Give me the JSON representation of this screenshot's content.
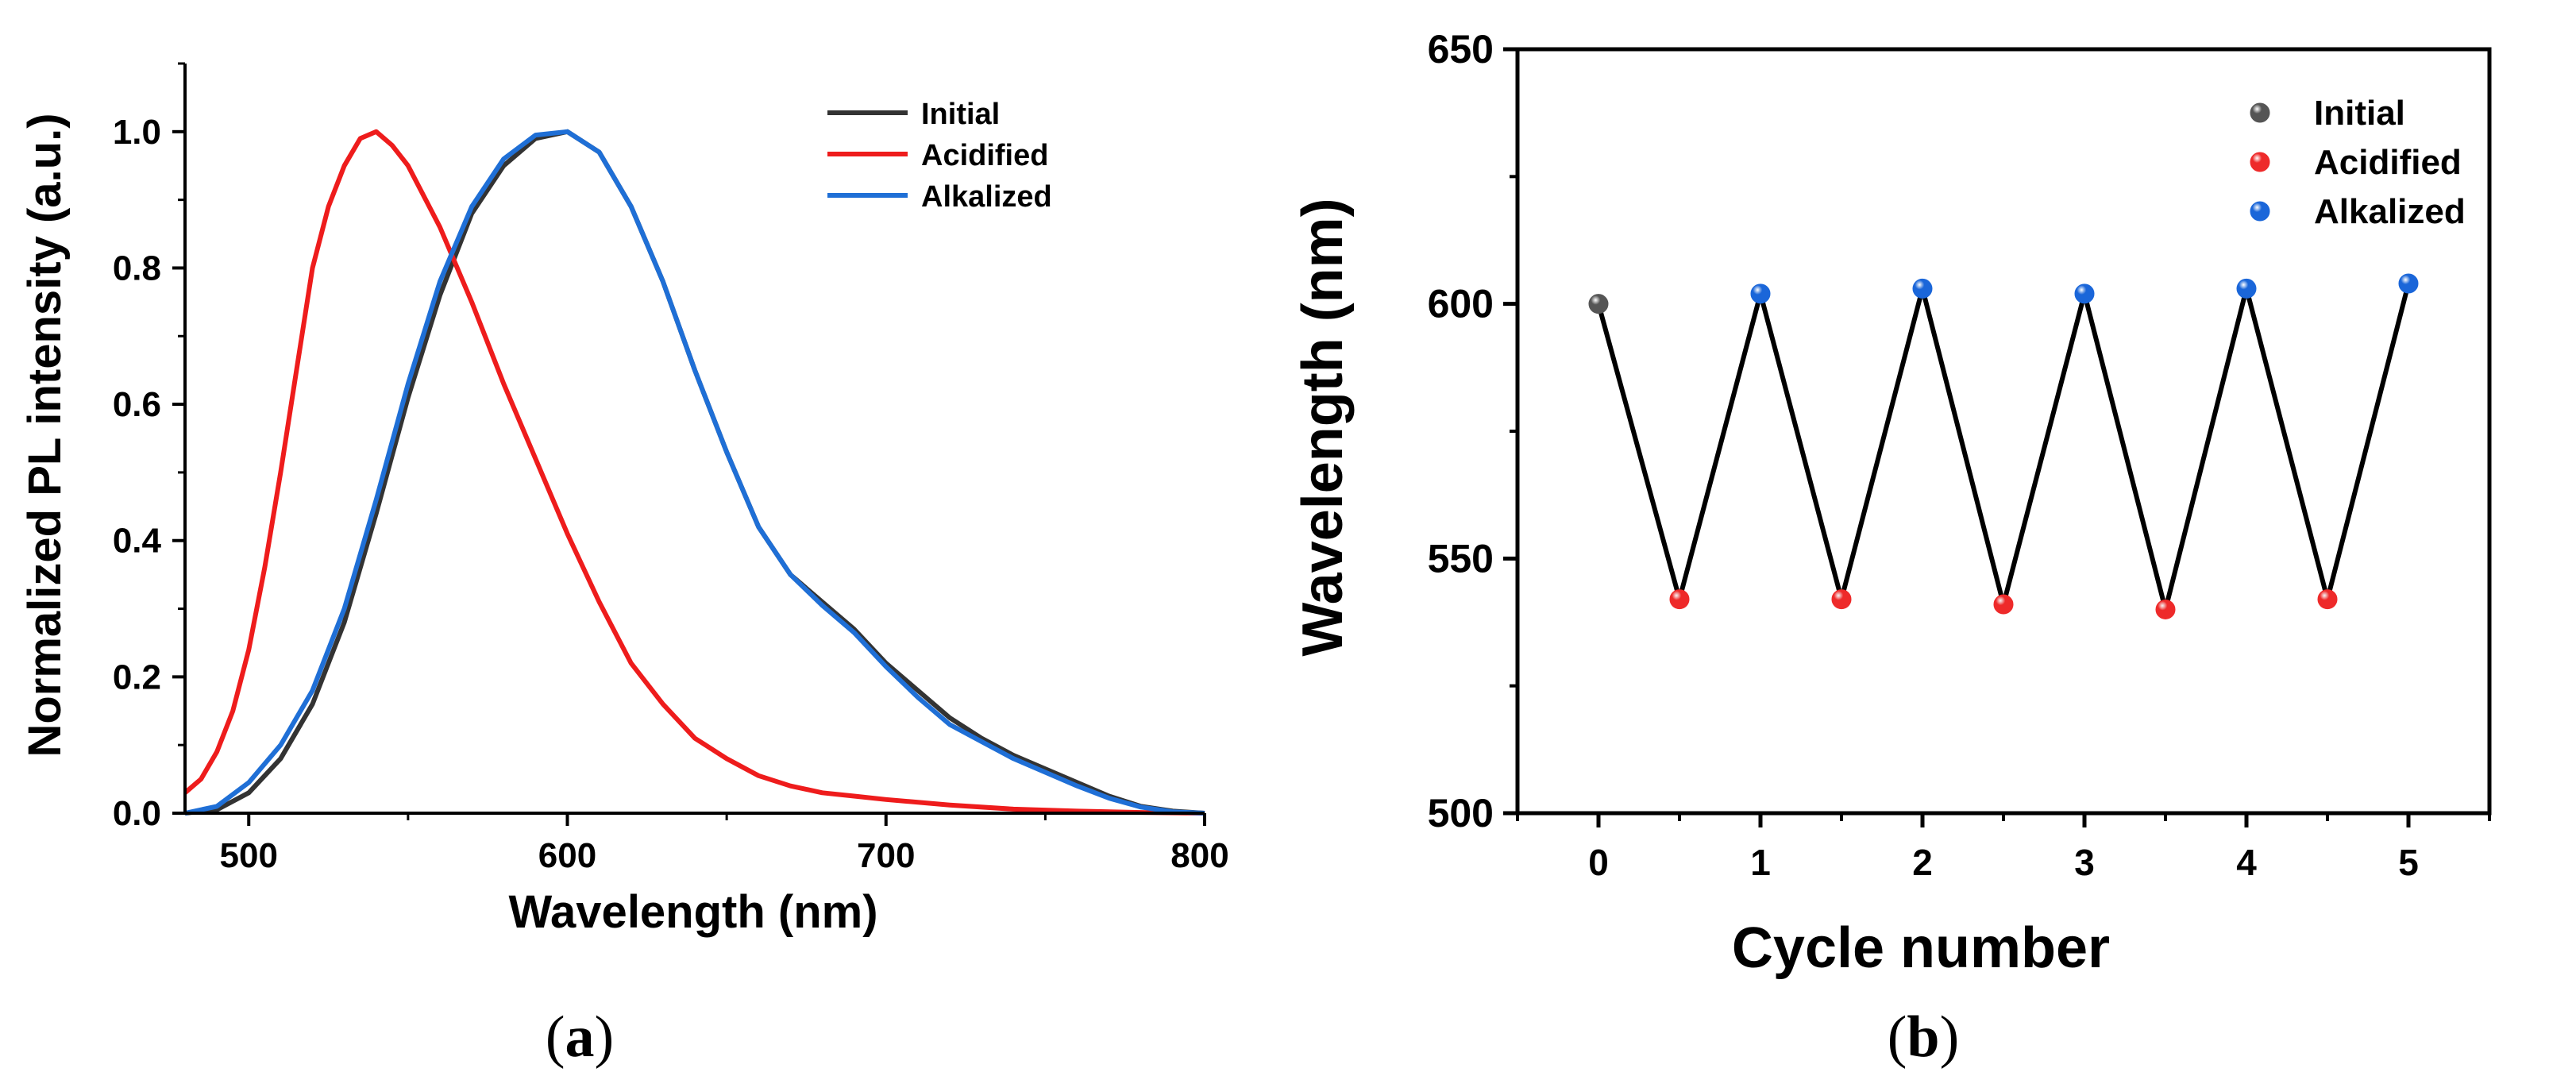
{
  "chart_data": [
    {
      "type": "line",
      "panel_label": "a",
      "title": "",
      "xlabel": "Wavelength (nm)",
      "ylabel": "Normalized PL intensity (a.u.)",
      "xlim": [
        480,
        800
      ],
      "ylim": [
        0.0,
        1.1
      ],
      "xticks": [
        500,
        600,
        700,
        800
      ],
      "xtick_labels": [
        "500",
        "600",
        "700",
        "800"
      ],
      "yticks": [
        0.0,
        0.2,
        0.4,
        0.6,
        0.8,
        1.0
      ],
      "ytick_labels": [
        "0.0",
        "0.2",
        "0.4",
        "0.6",
        "0.8",
        "1.0"
      ],
      "grid": false,
      "legend": "top-right",
      "series": [
        {
          "name": "Initial",
          "color": "#333333",
          "x": [
            480,
            490,
            500,
            510,
            520,
            530,
            540,
            550,
            560,
            570,
            580,
            590,
            600,
            610,
            620,
            630,
            640,
            650,
            660,
            670,
            680,
            690,
            700,
            710,
            720,
            730,
            740,
            750,
            760,
            770,
            780,
            790,
            800
          ],
          "y": [
            0.0,
            0.005,
            0.03,
            0.08,
            0.16,
            0.28,
            0.44,
            0.61,
            0.76,
            0.88,
            0.95,
            0.99,
            1.0,
            0.97,
            0.89,
            0.78,
            0.65,
            0.53,
            0.42,
            0.35,
            0.31,
            0.27,
            0.22,
            0.18,
            0.14,
            0.11,
            0.085,
            0.065,
            0.045,
            0.025,
            0.01,
            0.003,
            0.0
          ]
        },
        {
          "name": "Acidified",
          "color": "#ee1c1c",
          "x": [
            480,
            485,
            490,
            495,
            500,
            505,
            510,
            515,
            520,
            525,
            530,
            535,
            540,
            545,
            550,
            560,
            570,
            580,
            590,
            600,
            610,
            620,
            630,
            640,
            650,
            660,
            670,
            680,
            690,
            700,
            720,
            740,
            760,
            780,
            800
          ],
          "y": [
            0.03,
            0.05,
            0.09,
            0.15,
            0.24,
            0.36,
            0.5,
            0.65,
            0.8,
            0.89,
            0.95,
            0.99,
            1.0,
            0.98,
            0.95,
            0.86,
            0.75,
            0.63,
            0.52,
            0.41,
            0.31,
            0.22,
            0.16,
            0.11,
            0.08,
            0.055,
            0.04,
            0.03,
            0.025,
            0.02,
            0.012,
            0.006,
            0.003,
            0.001,
            0.0
          ]
        },
        {
          "name": "Alkalized",
          "color": "#1f6fd6",
          "x": [
            480,
            490,
            500,
            510,
            520,
            530,
            540,
            550,
            560,
            570,
            580,
            590,
            600,
            610,
            620,
            630,
            640,
            650,
            660,
            670,
            680,
            690,
            700,
            710,
            720,
            730,
            740,
            750,
            760,
            770,
            780,
            790,
            800
          ],
          "y": [
            0.0,
            0.01,
            0.045,
            0.1,
            0.18,
            0.3,
            0.46,
            0.63,
            0.78,
            0.89,
            0.96,
            0.995,
            1.0,
            0.97,
            0.89,
            0.78,
            0.65,
            0.53,
            0.42,
            0.35,
            0.305,
            0.265,
            0.215,
            0.17,
            0.13,
            0.105,
            0.08,
            0.06,
            0.04,
            0.022,
            0.009,
            0.002,
            0.0
          ]
        }
      ]
    },
    {
      "type": "scatter",
      "panel_label": "b",
      "title": "",
      "xlabel": "Cycle number",
      "ylabel": "Wavelength (nm)",
      "xlim": [
        -0.5,
        5.5
      ],
      "ylim": [
        500,
        650
      ],
      "xticks": [
        0,
        1,
        2,
        3,
        4,
        5
      ],
      "xtick_labels": [
        "0",
        "1",
        "2",
        "3",
        "4",
        "5"
      ],
      "yticks": [
        500,
        550,
        600,
        650
      ],
      "ytick_labels": [
        "500",
        "550",
        "600",
        "650"
      ],
      "grid": false,
      "legend": "top-right",
      "connect_line_color": "#000000",
      "points": [
        {
          "x": 0.0,
          "y": 600,
          "series": "Initial"
        },
        {
          "x": 0.5,
          "y": 542,
          "series": "Acidified"
        },
        {
          "x": 1.0,
          "y": 602,
          "series": "Alkalized"
        },
        {
          "x": 1.5,
          "y": 542,
          "series": "Acidified"
        },
        {
          "x": 2.0,
          "y": 603,
          "series": "Alkalized"
        },
        {
          "x": 2.5,
          "y": 541,
          "series": "Acidified"
        },
        {
          "x": 3.0,
          "y": 602,
          "series": "Alkalized"
        },
        {
          "x": 3.5,
          "y": 540,
          "series": "Acidified"
        },
        {
          "x": 4.0,
          "y": 603,
          "series": "Alkalized"
        },
        {
          "x": 4.5,
          "y": 542,
          "series": "Acidified"
        },
        {
          "x": 5.0,
          "y": 604,
          "series": "Alkalized"
        }
      ],
      "series": [
        {
          "name": "Initial",
          "color": "#555555"
        },
        {
          "name": "Acidified",
          "color": "#ee2a2a"
        },
        {
          "name": "Alkalized",
          "color": "#1a66d9"
        }
      ]
    }
  ]
}
